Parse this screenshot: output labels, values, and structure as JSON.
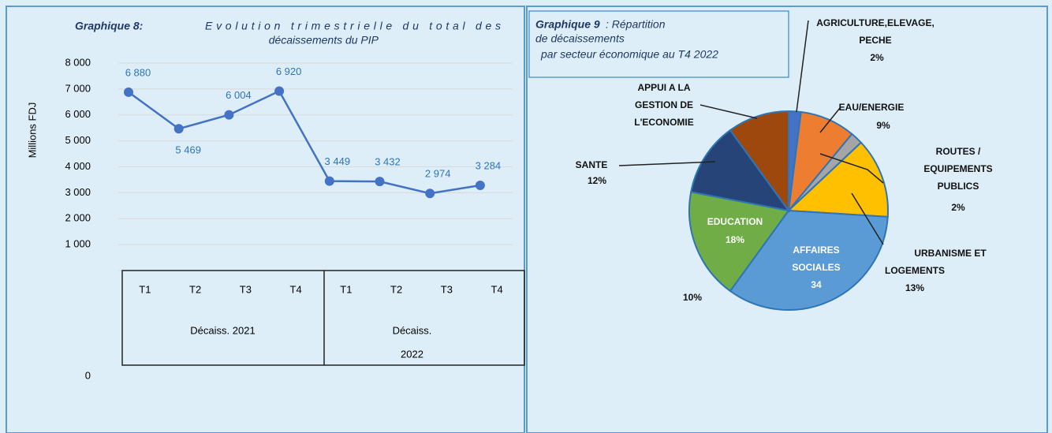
{
  "chart_data": [
    {
      "type": "line",
      "title_number": "Graphique 8:",
      "title": [
        "Evolution trimestrielle du total des",
        "décaissements du PIP"
      ],
      "ylabel": "Millions FDJ",
      "categories": [
        "T1",
        "T2",
        "T3",
        "T4",
        "T1",
        "T2",
        "T3",
        "T4"
      ],
      "groups": [
        [
          "Décaiss. 2021"
        ],
        [
          "Décaiss.",
          "2022"
        ]
      ],
      "series": [
        {
          "color": "#4472c4",
          "values": [
            6880,
            5469,
            6004,
            6920,
            3449,
            3432,
            2974,
            3284
          ],
          "value_labels": [
            "6 880",
            "5 469",
            "6 004",
            "6 920",
            "3 449",
            "3 432",
            "2 974",
            "3 284"
          ]
        }
      ],
      "ylim": [
        0,
        8000
      ],
      "yticks": [
        0,
        {
          "value": 1000,
          "label": "1 000"
        },
        {
          "value": 2000,
          "label": "2 000"
        },
        {
          "value": 3000,
          "label": "3 000"
        },
        {
          "value": 4000,
          "label": "4 000"
        },
        {
          "value": 5000,
          "label": "5 000"
        },
        {
          "value": 6000,
          "label": "6 000"
        },
        {
          "value": 7000,
          "label": "7 000"
        },
        {
          "value": 8000,
          "label": "8 000"
        }
      ],
      "grid": true
    },
    {
      "type": "pie",
      "title_number": "Graphique 9",
      "title": [
        ": Répartition",
        "de décaissements",
        "par secteur économique au T4 2022"
      ],
      "categories": [
        [
          "AGRICULTURE,ELEVAGE,",
          "PECHE"
        ],
        [
          "EAU/ENERGIE"
        ],
        [
          "ROUTES /",
          "EQUIPEMENTS",
          "PUBLICS"
        ],
        [
          "URBANISME ET",
          "LOGEMENTS"
        ],
        [
          "AFFAIRES",
          "SOCIALES"
        ],
        [
          "EDUCATION"
        ],
        [
          "SANTE"
        ],
        [
          "APPUI A LA",
          "GESTION DE",
          "L'ECONOMIE"
        ]
      ],
      "values": [
        2,
        9,
        2,
        13,
        34,
        18,
        12,
        10
      ],
      "value_labels": [
        "2%",
        "9%",
        "2%",
        "13%",
        "34",
        "18%",
        "12%",
        "10%"
      ],
      "colors": [
        "#4472c4",
        "#ed7d31",
        "#a5a5a5",
        "#ffc000",
        "#5b9bd5",
        "#70ad47",
        "#264478",
        "#9e480e"
      ]
    }
  ]
}
